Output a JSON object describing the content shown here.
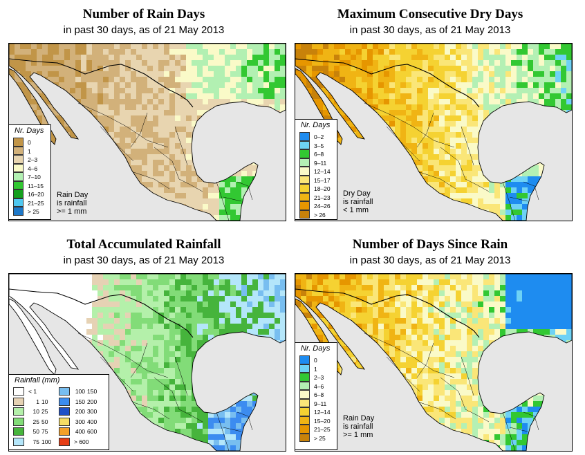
{
  "panels": [
    {
      "title": "Number of Rain Days",
      "subtitle": "in past 30 days, as of  21 May 2013",
      "legend_title": "Nr. Days",
      "legend_items": [
        {
          "label": "0",
          "color": "#c19548"
        },
        {
          "label": "1",
          "color": "#d2b17a"
        },
        {
          "label": "2–3",
          "color": "#e8d5b0"
        },
        {
          "label": "4–6",
          "color": "#fafac8"
        },
        {
          "label": "7–10",
          "color": "#b2f0b2"
        },
        {
          "label": "11–15",
          "color": "#32c832"
        },
        {
          "label": "16–20",
          "color": "#14a01e"
        },
        {
          "label": "21–25",
          "color": "#50c8f0"
        },
        {
          "label": "> 25",
          "color": "#1e78c8"
        }
      ],
      "note": [
        "Rain Day",
        "is rainfall",
        ">= 1 mm"
      ]
    },
    {
      "title": "Maximum Consecutive Dry Days",
      "subtitle": "in past 30 days, as of  21 May 2013",
      "legend_title": "Nr. Days",
      "legend_items": [
        {
          "label": "0–2",
          "color": "#1e8cf0"
        },
        {
          "label": "3–5",
          "color": "#6ed2f5"
        },
        {
          "label": "6–8",
          "color": "#32c832"
        },
        {
          "label": "9–11",
          "color": "#b4f0b4"
        },
        {
          "label": "12–14",
          "color": "#fafac8"
        },
        {
          "label": "15–17",
          "color": "#fae678"
        },
        {
          "label": "18–20",
          "color": "#f5d232"
        },
        {
          "label": "21–23",
          "color": "#f0b414"
        },
        {
          "label": "24–26",
          "color": "#e69600"
        },
        {
          "label": "> 26",
          "color": "#c8820a"
        }
      ],
      "note": [
        "Dry Day",
        "is rainfall",
        "< 1 mm"
      ]
    },
    {
      "title": "Total Accumulated Rainfall",
      "subtitle": "in past 30 days, as of  21 May 2013",
      "legend_title": "Rainfall (mm)",
      "legend_items": [
        {
          "lo": "",
          "hi": "< 1",
          "color": "#ffffff"
        },
        {
          "lo": "1",
          "hi": "10",
          "color": "#e6d2b4"
        },
        {
          "lo": "10",
          "hi": "25",
          "color": "#b4f0aa"
        },
        {
          "lo": "25",
          "hi": "50",
          "color": "#82dc78"
        },
        {
          "lo": "50",
          "hi": "75",
          "color": "#46b43c"
        },
        {
          "lo": "75",
          "hi": "100",
          "color": "#b4e6fa"
        },
        {
          "lo": "100",
          "hi": "150",
          "color": "#78bef0"
        },
        {
          "lo": "150",
          "hi": "200",
          "color": "#3c8cf0"
        },
        {
          "lo": "200",
          "hi": "300",
          "color": "#1e50c8"
        },
        {
          "lo": "300",
          "hi": "400",
          "color": "#f5dc64"
        },
        {
          "lo": "400",
          "hi": "600",
          "color": "#f5a028"
        },
        {
          "lo": "",
          "hi": "> 600",
          "color": "#e63c14"
        }
      ]
    },
    {
      "title": "Number of Days Since Rain",
      "subtitle": "in past 30 days, as of  21 May 2013",
      "legend_title": "Nr. Days",
      "legend_items": [
        {
          "label": "0",
          "color": "#1e8cf0"
        },
        {
          "label": "1",
          "color": "#6ed2f5"
        },
        {
          "label": "2–3",
          "color": "#32c832"
        },
        {
          "label": "4–6",
          "color": "#b4f0b4"
        },
        {
          "label": "6–8",
          "color": "#fafac8"
        },
        {
          "label": "9–11",
          "color": "#fae678"
        },
        {
          "label": "12–14",
          "color": "#f5d232"
        },
        {
          "label": "15–20",
          "color": "#f0b414"
        },
        {
          "label": "21–25",
          "color": "#e69600"
        },
        {
          "label": "> 25",
          "color": "#c8820a"
        }
      ],
      "note": [
        "Rain Day",
        "is rainfall",
        ">= 1 mm"
      ]
    }
  ],
  "colors": {
    "ocean": "#e6e6e6",
    "border": "#000000"
  }
}
